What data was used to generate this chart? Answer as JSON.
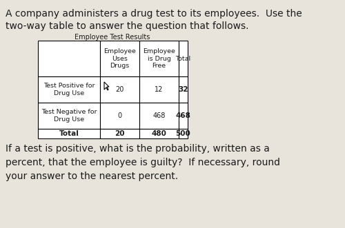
{
  "title_line1": "A company administers a drug test to its employees.  Use the",
  "title_line2": "two-way table to answer the question that follows.",
  "table_title": "Employee Test Results",
  "col_headers": [
    "Employee\nUses\nDrugs",
    "Employee\nis Drug\nFree",
    "Total"
  ],
  "row_headers": [
    "Test Positive for\nDrug Use",
    "Test Negative for\nDrug Use",
    "Total"
  ],
  "data": [
    [
      "20",
      "12",
      "32"
    ],
    [
      "0",
      "468",
      "468"
    ],
    [
      "20",
      "480",
      "500"
    ]
  ],
  "question_line1": "If a test is positive, what is the probability, written as a",
  "question_line2": "percent, that the employee is guilty?  If necessary, round",
  "question_line3": "your answer to the nearest percent.",
  "bg_color": "#e8e4dc",
  "table_bg": "#ffffff",
  "border_color": "#000000",
  "text_color": "#1a1a1a",
  "bold_color": "#000000"
}
